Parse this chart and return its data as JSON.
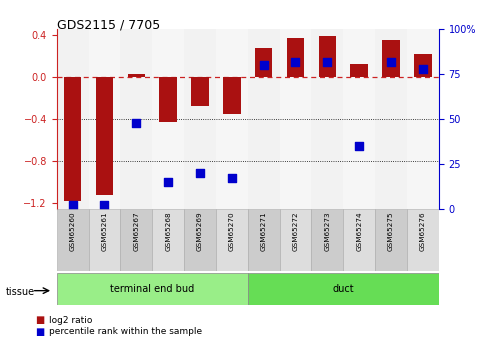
{
  "title": "GDS2115 / 7705",
  "samples": [
    "GSM65260",
    "GSM65261",
    "GSM65267",
    "GSM65268",
    "GSM65269",
    "GSM65270",
    "GSM65271",
    "GSM65272",
    "GSM65273",
    "GSM65274",
    "GSM65275",
    "GSM65276"
  ],
  "log2_ratio": [
    -1.18,
    -1.12,
    0.03,
    -0.43,
    -0.28,
    -0.35,
    0.27,
    0.37,
    0.39,
    0.12,
    0.35,
    0.22
  ],
  "percentile": [
    2,
    2,
    48,
    15,
    20,
    17,
    80,
    82,
    82,
    35,
    82,
    78
  ],
  "teb_indices": [
    0,
    1,
    2,
    3,
    4,
    5
  ],
  "duct_indices": [
    6,
    7,
    8,
    9,
    10,
    11
  ],
  "teb_label": "terminal end bud",
  "duct_label": "duct",
  "teb_color": "#99ee88",
  "duct_color": "#66dd55",
  "ylim_left": [
    -1.25,
    0.45
  ],
  "ylim_right": [
    0,
    100
  ],
  "yticks_left": [
    -1.2,
    -0.8,
    -0.4,
    0.0,
    0.4
  ],
  "yticks_right": [
    0,
    25,
    50,
    75,
    100
  ],
  "yticklabels_right": [
    "0",
    "25",
    "50",
    "75",
    "100%"
  ],
  "bar_color": "#aa1111",
  "dot_color": "#0000cc",
  "zero_line_color": "#cc2222",
  "hgrid_vals": [
    -0.4,
    -0.8
  ],
  "tissue_label": "tissue",
  "legend_log2": "log2 ratio",
  "legend_pct": "percentile rank within the sample",
  "bar_width": 0.55,
  "dot_size": 28,
  "label_col_colors": [
    "#cccccc",
    "#dddddd"
  ]
}
